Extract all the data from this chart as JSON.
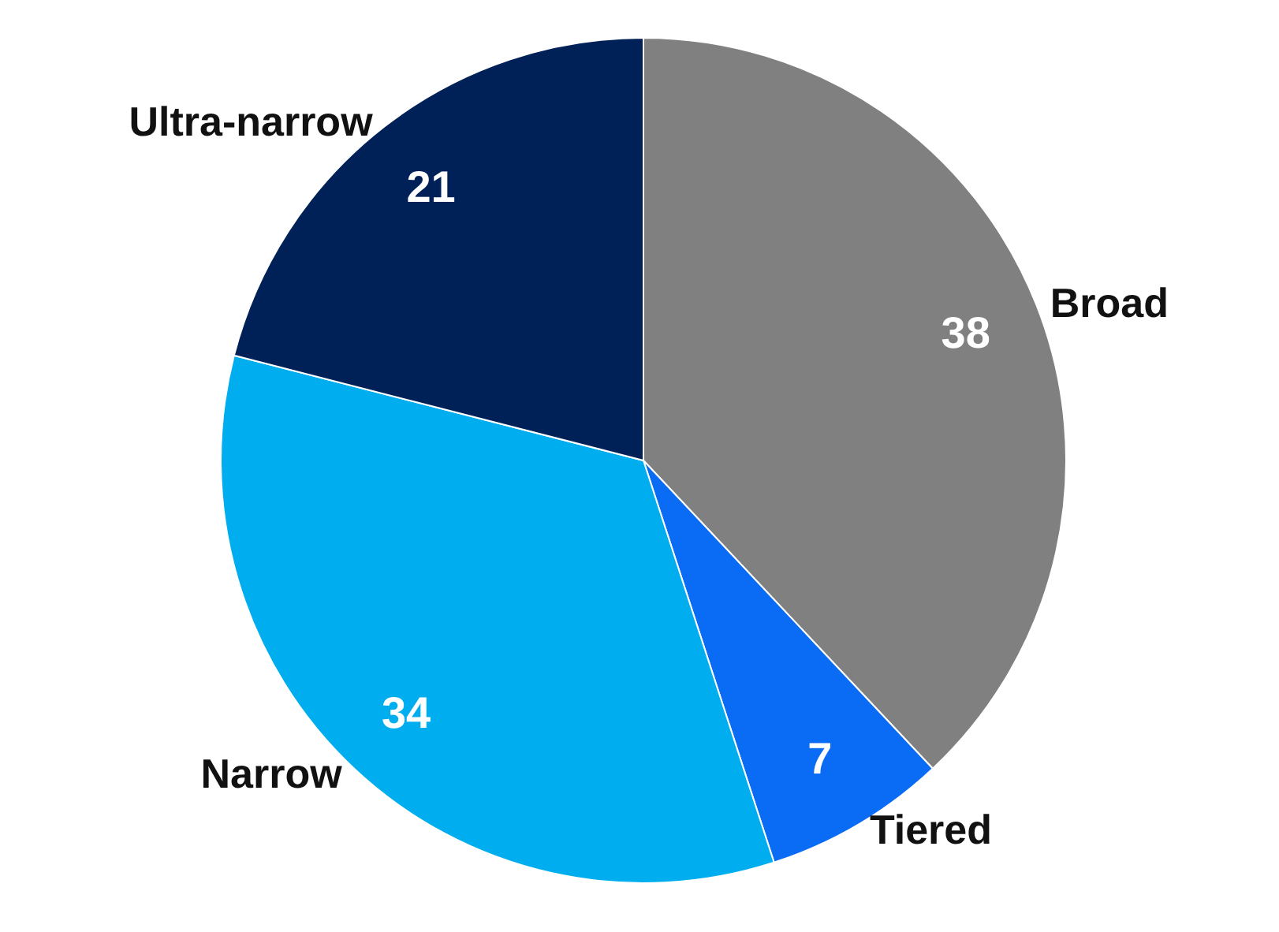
{
  "chart_data": {
    "type": "pie",
    "categories": [
      "Broad",
      "Tiered",
      "Narrow",
      "Ultra-narrow"
    ],
    "values": [
      38,
      7,
      34,
      21
    ],
    "colors": [
      "#808080",
      "#0a6cf5",
      "#00aeef",
      "#002157"
    ],
    "data_labels": true,
    "legend": false
  }
}
